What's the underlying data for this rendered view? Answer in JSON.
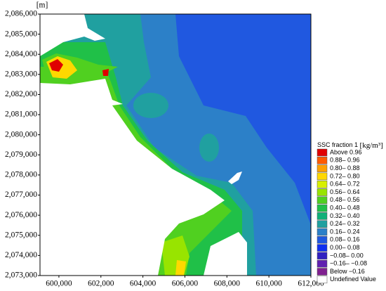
{
  "chart_data": {
    "type": "contour",
    "y_label": "[m]",
    "xlim": [
      599100,
      612000
    ],
    "ylim": [
      2073000,
      2086000
    ],
    "xticks": [
      {
        "value": 600000,
        "label": "600,000"
      },
      {
        "value": 602000,
        "label": "602,000"
      },
      {
        "value": 604000,
        "label": "604,000"
      },
      {
        "value": 606000,
        "label": "606,000"
      },
      {
        "value": 608000,
        "label": "608,000"
      },
      {
        "value": 610000,
        "label": "610,000"
      },
      {
        "value": 612000,
        "label": "612,000"
      }
    ],
    "yticks": [
      {
        "value": 2073000,
        "label": "2,073,000"
      },
      {
        "value": 2074000,
        "label": "2,074,000"
      },
      {
        "value": 2075000,
        "label": "2,075,000"
      },
      {
        "value": 2076000,
        "label": "2,076,000"
      },
      {
        "value": 2077000,
        "label": "2,077,000"
      },
      {
        "value": 2078000,
        "label": "2,078,000"
      },
      {
        "value": 2079000,
        "label": "2,079,000"
      },
      {
        "value": 2080000,
        "label": "2,080,000"
      },
      {
        "value": 2081000,
        "label": "2,081,000"
      },
      {
        "value": 2082000,
        "label": "2,082,000"
      },
      {
        "value": 2083000,
        "label": "2,083,000"
      },
      {
        "value": 2084000,
        "label": "2,084,000"
      },
      {
        "value": 2085000,
        "label": "2,085,000"
      },
      {
        "value": 2086000,
        "label": "2,086,000"
      }
    ],
    "legend_title": "SSC fraction 1",
    "legend_unit": "[kg/m³]",
    "legend": [
      {
        "label": "Above  0.96",
        "color": "#e00000"
      },
      {
        "label": "0.88– 0.96",
        "color": "#ff5a00"
      },
      {
        "label": "0.80– 0.88",
        "color": "#ffa000"
      },
      {
        "label": "0.72– 0.80",
        "color": "#ffd800"
      },
      {
        "label": "0.64– 0.72",
        "color": "#d8f000"
      },
      {
        "label": "0.56– 0.64",
        "color": "#98e400"
      },
      {
        "label": "0.48– 0.56",
        "color": "#50d020"
      },
      {
        "label": "0.40– 0.48",
        "color": "#20c048"
      },
      {
        "label": "0.32– 0.40",
        "color": "#10b078"
      },
      {
        "label": "0.24– 0.32",
        "color": "#20a0a0"
      },
      {
        "label": "0.16– 0.24",
        "color": "#2c80c8"
      },
      {
        "label": "0.08– 0.16",
        "color": "#2058e0"
      },
      {
        "label": "0.00– 0.08",
        "color": "#1030f0"
      },
      {
        "label": "−0.08– 0.00",
        "color": "#3020c0"
      },
      {
        "label": "−0.16– −0.08",
        "color": "#6020b0"
      },
      {
        "label": "Below −0.16",
        "color": "#802090"
      },
      {
        "label": "Undefined Value",
        "color": "#ffffff"
      }
    ]
  }
}
